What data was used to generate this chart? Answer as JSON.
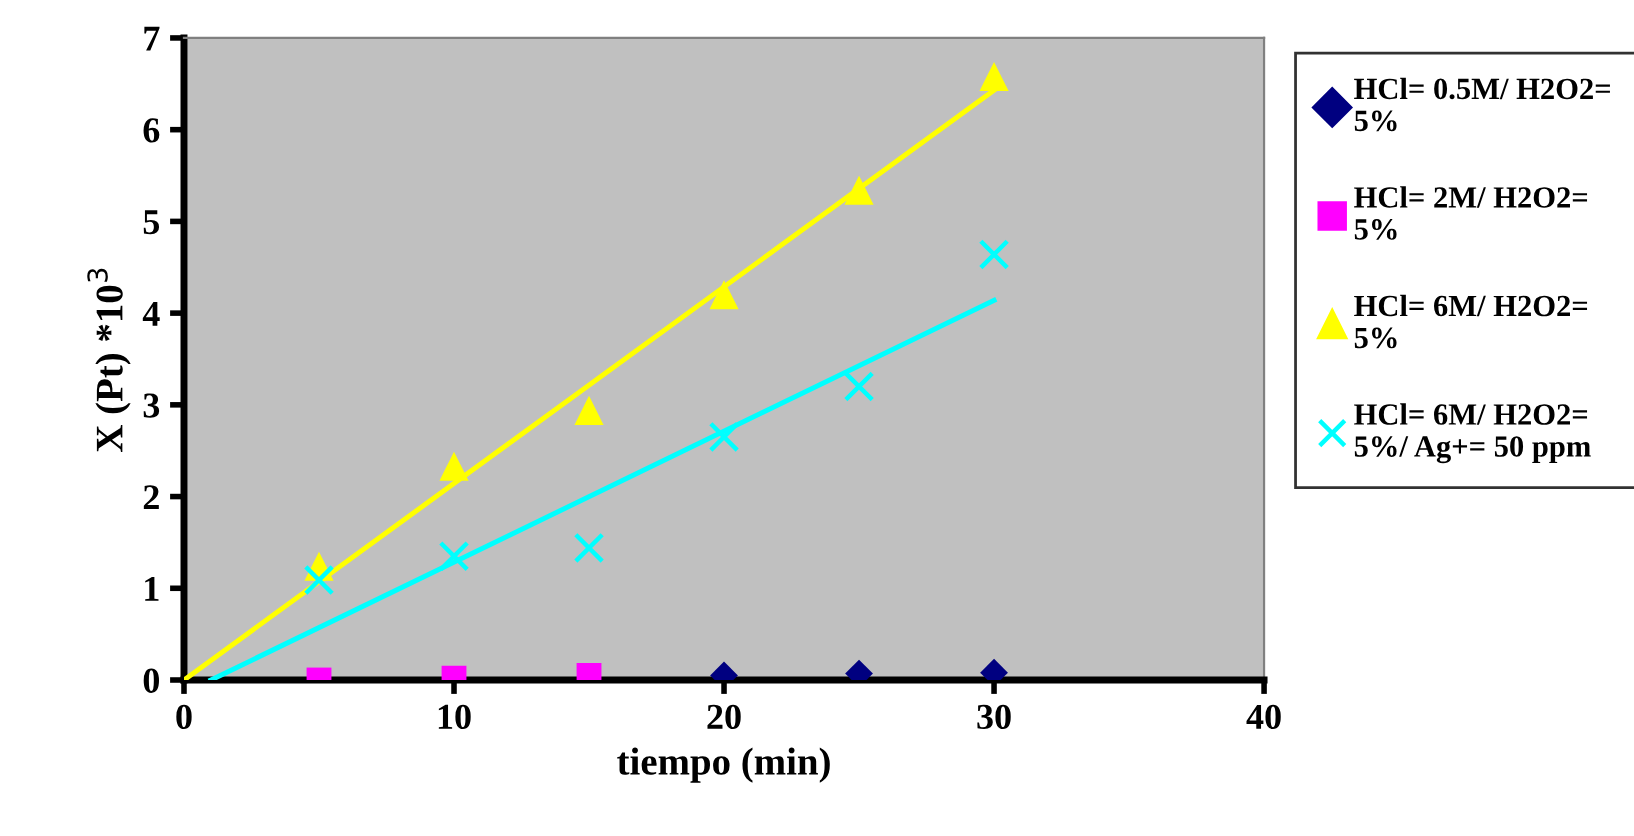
{
  "chart_data": {
    "type": "scatter",
    "xlabel": "tiempo (min)",
    "ylabel": "X (Pt) *10$^{3}$",
    "xlim": [
      0,
      40
    ],
    "ylim": [
      0,
      7
    ],
    "xticks": [
      0,
      10,
      20,
      30,
      40
    ],
    "yticks": [
      0,
      1,
      2,
      3,
      4,
      5,
      6,
      7
    ],
    "grid": false,
    "legend": "right",
    "series": [
      {
        "name": "HCl= 0.5M/ H2O2= 5%",
        "color": "#000080",
        "marker": "diamond",
        "x": [
          20,
          25,
          30
        ],
        "values": [
          0.05,
          0.07,
          0.08
        ]
      },
      {
        "name": "HCl= 2M/ H2O2= 5%",
        "color": "#ff00ff",
        "marker": "square",
        "x": [
          5,
          10,
          15
        ],
        "values": [
          0.0,
          0.02,
          0.05
        ]
      },
      {
        "name": "HCl= 6M/ H2O2= 5%",
        "color": "#ffff00",
        "marker": "triangle",
        "x": [
          5,
          10,
          15,
          20,
          25,
          30
        ],
        "values": [
          1.24,
          2.33,
          2.94,
          4.2,
          5.34,
          6.58
        ]
      },
      {
        "name": "HCl= 6M/ H2O2= 5%/ Ag+= 50 ppm",
        "color": "#00ffff",
        "marker": "cross",
        "x": [
          5,
          10,
          15,
          20,
          25,
          30
        ],
        "values": [
          1.09,
          1.35,
          1.44,
          2.65,
          3.2,
          4.64
        ]
      },
      {
        "type": "line",
        "color": "#ffff00",
        "marker": "none",
        "x": [
          0,
          30
        ],
        "values": [
          0,
          6.43
        ]
      },
      {
        "type": "line",
        "color": "#00ffff",
        "marker": "none",
        "x": [
          1,
          30
        ],
        "values": [
          0,
          4.14
        ]
      }
    ]
  }
}
